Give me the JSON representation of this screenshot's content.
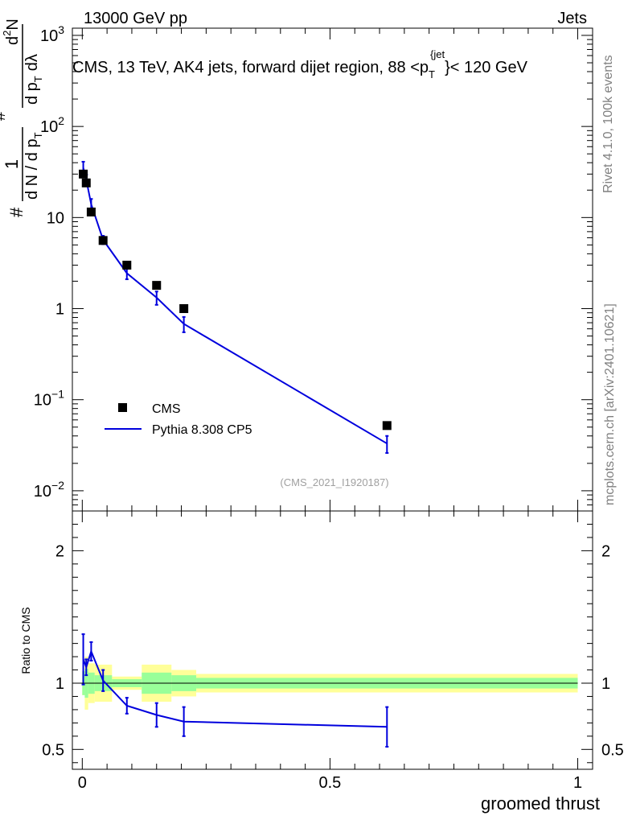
{
  "header": {
    "beam": "13000 GeV pp",
    "category": "Jets",
    "rivet": "Rivet 4.1.0,  100k events",
    "site": "mcplots.cern.ch [arXiv:2401.10621]",
    "analysis": "(CMS_2021_I1920187)"
  },
  "colors": {
    "data": "#000000",
    "mc": "#0000dd",
    "band_inner": "#99ff99",
    "band_outer": "#ffff99"
  },
  "chart_data": [
    {
      "type": "scatter",
      "title": "CMS, 13 TeV, AK4 jets, forward dijet region, 88 <pT{jet}< 120 GeV",
      "title_parts": {
        "main": "CMS, 13 TeV, AK4 jets, forward dijet region, 88 <p",
        "sub": "T",
        "sup": "{jet",
        "end": "}< 120 GeV"
      },
      "ylabel_parts": {
        "hash": "#",
        "one": "1",
        "denom": "d N / d p",
        "denom_sub": "T",
        "num_hash": "#",
        "num": "d",
        "num_sup": "2",
        "num_N": "N",
        "den2": "d p",
        "den2_sub": "T",
        "den2_end": "dλ"
      },
      "xlim": [
        -0.02,
        1.03
      ],
      "ylim": [
        0.006,
        1200
      ],
      "yscale": "log",
      "y_ticks": [
        {
          "v": 0.01,
          "base": "10",
          "exp": "−2"
        },
        {
          "v": 0.1,
          "base": "10",
          "exp": "−1"
        },
        {
          "v": 1,
          "base": "1",
          "exp": ""
        },
        {
          "v": 10,
          "base": "10",
          "exp": ""
        },
        {
          "v": 100,
          "base": "10",
          "exp": "2"
        },
        {
          "v": 1000,
          "base": "10",
          "exp": "3"
        }
      ],
      "legend": [
        {
          "label": "CMS",
          "marker": "square"
        },
        {
          "label": "Pythia 8.308 CP5",
          "marker": "line"
        }
      ],
      "legend_position": "lower-left",
      "series": [
        {
          "name": "CMS",
          "x": [
            0.002,
            0.008,
            0.018,
            0.042,
            0.09,
            0.15,
            0.205,
            0.615
          ],
          "y": [
            30,
            24,
            11.5,
            5.6,
            3.0,
            1.8,
            1.0,
            0.052
          ]
        },
        {
          "name": "Pythia 8.308 CP5",
          "x": [
            0.002,
            0.008,
            0.018,
            0.042,
            0.09,
            0.15,
            0.205,
            0.615
          ],
          "y": [
            35,
            26,
            14,
            5.7,
            2.45,
            1.32,
            0.68,
            0.033
          ],
          "err": [
            6,
            3.5,
            2,
            0.6,
            0.35,
            0.22,
            0.13,
            0.007
          ]
        }
      ]
    },
    {
      "type": "line",
      "ylabel": "Ratio to CMS",
      "xlabel": "groomed thrust",
      "xlim": [
        -0.02,
        1.03
      ],
      "ylim": [
        0.35,
        2.3
      ],
      "y_ticks": [
        0.5,
        1,
        2
      ],
      "y_tick_labels": [
        "0.5",
        "1",
        "2"
      ],
      "x_ticks": [
        0,
        0.5,
        1
      ],
      "x_tick_labels": [
        "0",
        "0.5",
        "1"
      ],
      "reference_line": 1,
      "bands": {
        "edges": [
          0,
          0.005,
          0.012,
          0.025,
          0.06,
          0.12,
          0.18,
          0.23,
          1.0
        ],
        "inner": [
          0.09,
          0.11,
          0.08,
          0.06,
          0.03,
          0.08,
          0.06,
          0.04
        ],
        "outer": [
          0.09,
          0.2,
          0.15,
          0.14,
          0.05,
          0.14,
          0.1,
          0.07
        ]
      },
      "series": [
        {
          "name": "Pythia 8.308 CP5",
          "x": [
            0.002,
            0.008,
            0.018,
            0.042,
            0.09,
            0.15,
            0.205,
            0.615
          ],
          "y": [
            1.18,
            1.12,
            1.24,
            1.02,
            0.83,
            0.76,
            0.71,
            0.67
          ],
          "err": [
            0.19,
            0.06,
            0.07,
            0.08,
            0.06,
            0.09,
            0.11,
            0.15
          ]
        }
      ]
    }
  ]
}
